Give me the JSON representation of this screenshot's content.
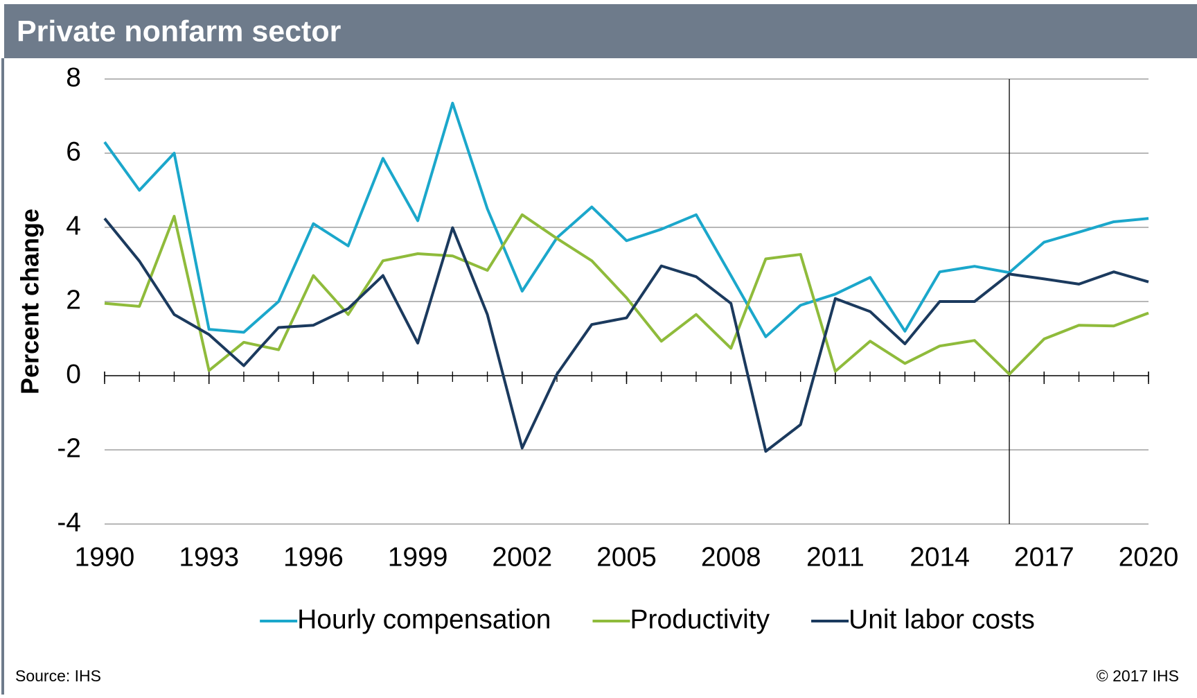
{
  "chart_data": {
    "type": "line",
    "title": "Private nonfarm sector",
    "y_label": "Percent change",
    "source": "Source: IHS",
    "copyright": "© 2017 IHS",
    "x": [
      1990,
      1991,
      1992,
      1993,
      1994,
      1995,
      1996,
      1997,
      1998,
      1999,
      2000,
      2001,
      2002,
      2003,
      2004,
      2005,
      2006,
      2007,
      2008,
      2009,
      2010,
      2011,
      2012,
      2013,
      2014,
      2015,
      2016,
      2017,
      2018,
      2019,
      2020
    ],
    "series": [
      {
        "name": "Hourly compensation",
        "color": "#1ba7cb",
        "values": [
          6.3,
          5.0,
          6.0,
          1.25,
          1.17,
          2.0,
          4.1,
          3.5,
          5.86,
          4.18,
          7.35,
          4.5,
          2.28,
          3.72,
          4.55,
          3.64,
          3.95,
          4.34,
          2.7,
          1.05,
          1.9,
          2.2,
          2.65,
          1.2,
          2.8,
          2.95,
          2.78,
          3.6,
          3.87,
          4.15,
          4.24
        ]
      },
      {
        "name": "Productivity",
        "color": "#8fbb3b",
        "values": [
          1.95,
          1.87,
          4.3,
          0.14,
          0.9,
          0.7,
          2.7,
          1.65,
          3.1,
          3.29,
          3.23,
          2.84,
          4.34,
          3.7,
          3.1,
          2.1,
          0.93,
          1.65,
          0.74,
          3.15,
          3.27,
          0.12,
          0.93,
          0.33,
          0.8,
          0.95,
          0.04,
          0.99,
          1.36,
          1.34,
          1.69
        ]
      },
      {
        "name": "Unit labor costs",
        "color": "#1b3a5e",
        "values": [
          4.24,
          3.09,
          1.65,
          1.11,
          0.27,
          1.3,
          1.36,
          1.81,
          2.7,
          0.88,
          3.99,
          1.65,
          -1.95,
          0.04,
          1.38,
          1.56,
          2.96,
          2.67,
          1.95,
          -2.04,
          -1.32,
          2.08,
          1.73,
          0.86,
          2.0,
          2.0,
          2.74,
          2.61,
          2.47,
          2.8,
          2.53
        ]
      }
    ],
    "xlim": [
      1990,
      2020
    ],
    "xticks": [
      1990,
      1993,
      1996,
      1999,
      2002,
      2005,
      2008,
      2011,
      2014,
      2017,
      2020
    ],
    "ylim": [
      -4,
      8
    ],
    "yticks": [
      -4,
      -2,
      0,
      2,
      4,
      6,
      8
    ],
    "grid": true,
    "divider_x": 2016,
    "legend": "bottom"
  }
}
